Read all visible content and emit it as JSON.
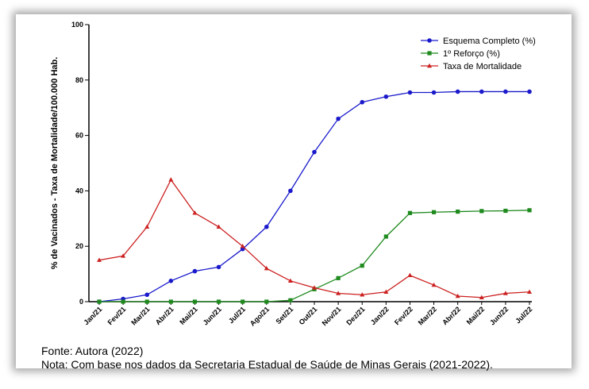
{
  "chart_data": {
    "type": "line",
    "ylabel": "% de Vacinados - Taxa de Mortalidade/100.000 Hab.",
    "xlabel": "",
    "ylim": [
      0,
      100
    ],
    "yticks": [
      0,
      20,
      40,
      60,
      80,
      100
    ],
    "legend_position": "top-right",
    "grid": false,
    "categories": [
      "Jan/21",
      "Fev/21",
      "Mar/21",
      "Abr/21",
      "Mai/21",
      "Jun/21",
      "Jul/21",
      "Ago/21",
      "Set/21",
      "Out/21",
      "Nov/21",
      "Dez/21",
      "Jan/22",
      "Fev/22",
      "Mar/22",
      "Abr/22",
      "Mai/22",
      "Jun/22",
      "Jul/22"
    ],
    "series": [
      {
        "name": "Esquema Completo (%)",
        "color": "#1a1acc",
        "marker": "circle",
        "values": [
          0,
          1,
          2.5,
          7.5,
          11,
          12.5,
          19,
          27,
          40,
          54,
          66,
          72,
          74,
          75.5,
          75.5,
          75.8,
          75.8,
          75.8,
          75.8
        ]
      },
      {
        "name": "1º Reforço (%)",
        "color": "#1e8a1e",
        "marker": "square",
        "values": [
          0,
          0,
          0,
          0,
          0,
          0,
          0,
          0,
          0.5,
          4.5,
          8.5,
          13,
          23.5,
          32,
          32.3,
          32.5,
          32.7,
          32.8,
          33
        ]
      },
      {
        "name": "Taxa de Mortalidade",
        "color": "#cc2020",
        "marker": "triangle",
        "values": [
          15,
          16.5,
          27,
          44,
          32,
          27,
          20,
          12,
          7.5,
          5,
          3,
          2.5,
          3.5,
          9.5,
          6,
          2,
          1.5,
          3,
          3.5
        ]
      }
    ]
  },
  "notes": {
    "source": "Fonte: Autora (2022)",
    "note": "Nota: Com base nos dados da Secretaria Estadual de Saúde de Minas Gerais (2021-2022)."
  }
}
